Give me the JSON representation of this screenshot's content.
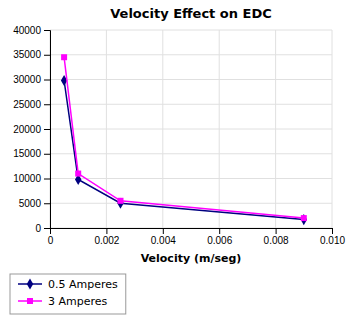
{
  "chart_data": {
    "type": "line",
    "title": "Velocity Effect on EDC",
    "xlabel": "Velocity (m/seg)",
    "x": [
      0.0005,
      0.001,
      0.0025,
      0.009
    ],
    "series": [
      {
        "name": "0.5 Amperes",
        "color": "#000080",
        "marker": "diamond",
        "values": [
          29800,
          9800,
          5000,
          1700
        ]
      },
      {
        "name": "3 Amperes",
        "color": "#FF00FF",
        "marker": "square",
        "values": [
          34500,
          11000,
          5500,
          2000
        ]
      }
    ],
    "xlim": [
      0,
      0.01
    ],
    "ylim": [
      0,
      40000
    ],
    "xticks": [
      0,
      0.002,
      0.004,
      0.006,
      0.008,
      {
        "value": 0.01,
        "label": "0.010"
      }
    ],
    "yticks": [
      0,
      5000,
      10000,
      15000,
      20000,
      25000,
      30000,
      35000,
      40000
    ],
    "grid": true,
    "legend": "bottom"
  }
}
